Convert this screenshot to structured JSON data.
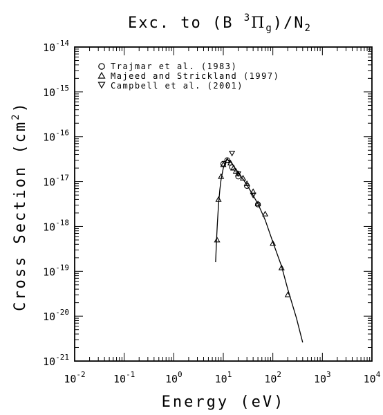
{
  "chart_data": {
    "type": "scatter",
    "title": {
      "prefix": "Exc. to (B ",
      "sup": "3",
      "greek": "Π",
      "sub_g": "g",
      "middle": ")/N",
      "sub_2": "2"
    },
    "xlabel": "Energy (eV)",
    "ylabel_main": "Cross Section (cm",
    "ylabel_sup": "2",
    "ylabel_end": ")",
    "x_scale": "log",
    "y_scale": "log",
    "xlim": [
      0.01,
      10000
    ],
    "ylim": [
      1e-21,
      1e-14
    ],
    "x_ticks": [
      {
        "base": "10",
        "exp": "-2",
        "value": 0.01
      },
      {
        "base": "10",
        "exp": "-1",
        "value": 0.1
      },
      {
        "base": "10",
        "exp": "0",
        "value": 1
      },
      {
        "base": "10",
        "exp": "1",
        "value": 10
      },
      {
        "base": "10",
        "exp": "2",
        "value": 100
      },
      {
        "base": "10",
        "exp": "3",
        "value": 1000
      },
      {
        "base": "10",
        "exp": "4",
        "value": 10000
      }
    ],
    "y_ticks": [
      {
        "base": "10",
        "exp": "-21",
        "value": 1e-21
      },
      {
        "base": "10",
        "exp": "-20",
        "value": 1e-20
      },
      {
        "base": "10",
        "exp": "-19",
        "value": 1e-19
      },
      {
        "base": "10",
        "exp": "-18",
        "value": 1e-18
      },
      {
        "base": "10",
        "exp": "-17",
        "value": 1e-17
      },
      {
        "base": "10",
        "exp": "-16",
        "value": 1e-16
      },
      {
        "base": "10",
        "exp": "-15",
        "value": 1e-15
      },
      {
        "base": "10",
        "exp": "-14",
        "value": 1e-14
      }
    ],
    "grid": false,
    "legend_position": "top-left",
    "series": [
      {
        "name": "Trajmar et al. (1983)",
        "marker": "circle",
        "points": [
          {
            "x": 10,
            "y": 2.5e-17
          },
          {
            "x": 12,
            "y": 3e-17
          },
          {
            "x": 15,
            "y": 2.1e-17
          },
          {
            "x": 20,
            "y": 1.3e-17
          },
          {
            "x": 30,
            "y": 8e-18
          },
          {
            "x": 50,
            "y": 3.1e-18
          }
        ]
      },
      {
        "name": "Majeed and Strickland (1997)",
        "marker": "triangle-up",
        "points": [
          {
            "x": 7.5,
            "y": 5e-19
          },
          {
            "x": 8,
            "y": 4e-18
          },
          {
            "x": 9,
            "y": 1.3e-17
          },
          {
            "x": 10,
            "y": 2.4e-17
          },
          {
            "x": 12,
            "y": 2.9e-17
          },
          {
            "x": 14,
            "y": 2.6e-17
          },
          {
            "x": 16,
            "y": 2e-17
          },
          {
            "x": 18,
            "y": 1.7e-17
          },
          {
            "x": 20,
            "y": 1.5e-17
          },
          {
            "x": 25,
            "y": 1.2e-17
          },
          {
            "x": 30,
            "y": 9e-18
          },
          {
            "x": 40,
            "y": 6e-18
          },
          {
            "x": 50,
            "y": 3.2e-18
          },
          {
            "x": 70,
            "y": 1.9e-18
          },
          {
            "x": 100,
            "y": 4.2e-19
          },
          {
            "x": 150,
            "y": 1.2e-19
          },
          {
            "x": 200,
            "y": 3e-20
          }
        ]
      },
      {
        "name": "Campbell et al. (2001)",
        "marker": "triangle-down",
        "points": [
          {
            "x": 15,
            "y": 4.3e-17
          },
          {
            "x": 20,
            "y": 1.5e-17
          },
          {
            "x": 40,
            "y": 5e-18
          }
        ]
      }
    ],
    "curve": {
      "points": [
        {
          "x": 7.0,
          "y": 1.6e-19
        },
        {
          "x": 7.3,
          "y": 5e-19
        },
        {
          "x": 7.6,
          "y": 1.2e-18
        },
        {
          "x": 8.0,
          "y": 3e-18
        },
        {
          "x": 8.5,
          "y": 6.5e-18
        },
        {
          "x": 9.0,
          "y": 1.1e-17
        },
        {
          "x": 10.0,
          "y": 2e-17
        },
        {
          "x": 11.0,
          "y": 2.7e-17
        },
        {
          "x": 12.0,
          "y": 3.1e-17
        },
        {
          "x": 13.0,
          "y": 3e-17
        },
        {
          "x": 15.0,
          "y": 2.5e-17
        },
        {
          "x": 20.0,
          "y": 1.6e-17
        },
        {
          "x": 30.0,
          "y": 8.5e-18
        },
        {
          "x": 50.0,
          "y": 3.2e-18
        },
        {
          "x": 70.0,
          "y": 1.4e-18
        },
        {
          "x": 100.0,
          "y": 4.5e-19
        },
        {
          "x": 150.0,
          "y": 1.3e-19
        },
        {
          "x": 200.0,
          "y": 4e-20
        },
        {
          "x": 300.0,
          "y": 9e-21
        },
        {
          "x": 400.0,
          "y": 2.6e-21
        }
      ]
    }
  }
}
